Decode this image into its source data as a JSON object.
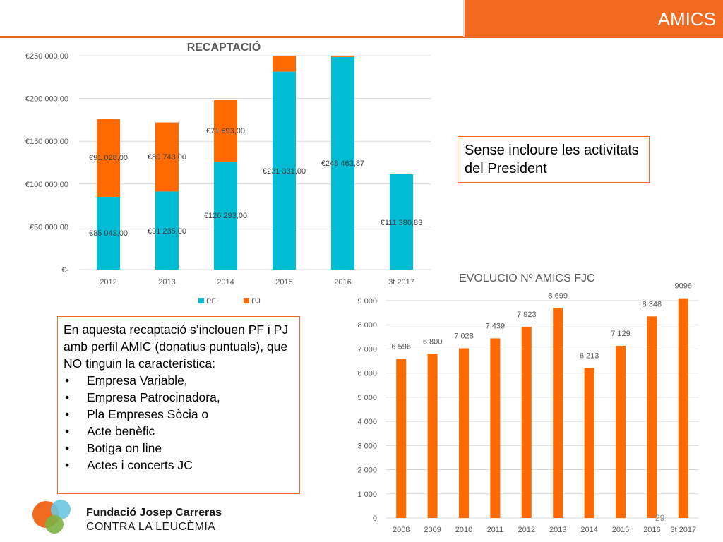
{
  "header": {
    "title": "AMICS"
  },
  "colors": {
    "accent": "#F26A1F",
    "pf": "#00BCD4",
    "pj": "#FF6A00",
    "amics_bar": "#FF6A00",
    "grid": "#d9d9d9"
  },
  "note": {
    "text": "Sense incloure les activitats del President"
  },
  "description": {
    "intro": "En aquesta recaptació s’inclouen PF i PJ amb perfil AMIC (donatius puntuals), que NO tinguin la característica:",
    "bullet_symbol": "•",
    "items": [
      "Empresa Variable,",
      "Empresa Patrocinadora,",
      "Pla Empreses Sòcia o",
      "Acte benèfic",
      "Botiga on line",
      "Actes i concerts JC"
    ]
  },
  "footer": {
    "org_name": "Fundació Josep Carreras",
    "org_sub": "CONTRA LA LEUCÈMIA",
    "page_number": "29"
  },
  "chart_data": [
    {
      "type": "bar",
      "stacked": true,
      "title": "RECAPTACIÓ",
      "categories": [
        "2012",
        "2013",
        "2014",
        "2015",
        "2016",
        "3t 2017"
      ],
      "series": [
        {
          "name": "PF",
          "values": [
            85043.0,
            91235.0,
            126293.0,
            231331.0,
            248463.87,
            111380.83
          ],
          "labels": [
            "€85 043,00",
            "€91 235,00",
            "€126 293,00",
            "€231 331,00",
            "€248 463,87",
            "€111 380,83"
          ]
        },
        {
          "name": "PJ",
          "values": [
            91028.0,
            80743.0,
            71693.0,
            18669.0,
            1536.13,
            0
          ],
          "labels": [
            "€91 028,00",
            "€80 743,00",
            "€71 693,00",
            "",
            "",
            ""
          ]
        }
      ],
      "ylim": [
        0,
        250000
      ],
      "yticks": [
        0,
        50000,
        100000,
        150000,
        200000,
        250000
      ],
      "ytick_labels": [
        "€-",
        "€50 000,00",
        "€100 000,00",
        "€150 000,00",
        "€200 000,00",
        "€250 000,00"
      ],
      "grid": true,
      "legend_position": "bottom"
    },
    {
      "type": "bar",
      "title": "EVOLUCIO Nº AMICS FJC",
      "categories": [
        "2008",
        "2009",
        "2010",
        "2011",
        "2012",
        "2013",
        "2014",
        "2015",
        "2016",
        "3t 2017"
      ],
      "values": [
        6596,
        6800,
        7028,
        7439,
        7923,
        8699,
        6213,
        7129,
        8348,
        9096
      ],
      "labels": [
        "6 596",
        "6 800",
        "7 028",
        "7 439",
        "7 923",
        "8 699",
        "6 213",
        "7 129",
        "8 348",
        "9096"
      ],
      "ylim": [
        0,
        9000
      ],
      "yticks": [
        0,
        1000,
        2000,
        3000,
        4000,
        5000,
        6000,
        7000,
        8000,
        9000
      ],
      "ytick_labels": [
        "0",
        "1 000",
        "2 000",
        "3 000",
        "4 000",
        "5 000",
        "6 000",
        "7 000",
        "8 000",
        "9 000"
      ],
      "grid": true
    }
  ]
}
